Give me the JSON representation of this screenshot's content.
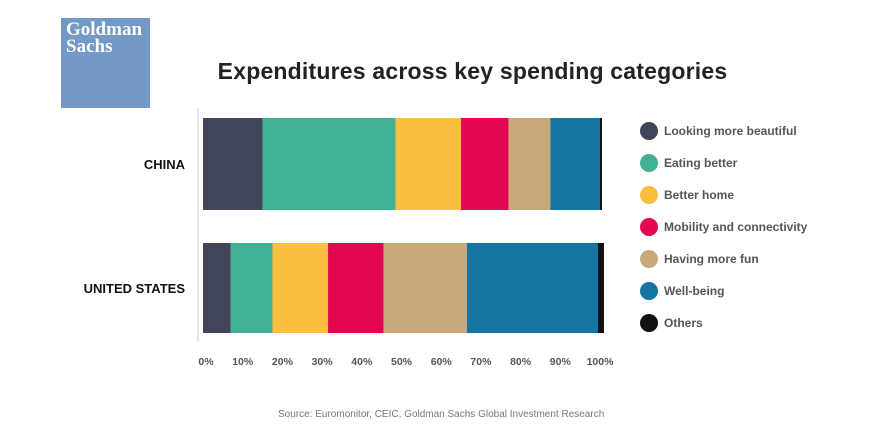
{
  "logo": {
    "line1": "Goldman",
    "line2": "Sachs",
    "color": "#7399c6"
  },
  "title": "Expenditures across key spending categories",
  "source": "Source: Euromonitor, CEIC, Goldman Sachs Global Investment Research",
  "chart_data": {
    "type": "bar",
    "orientation": "horizontal",
    "stacked": true,
    "title": "Expenditures across key spending categories",
    "categories": [
      "CHINA",
      "UNITED STATES"
    ],
    "series": [
      {
        "name": "Looking more beautiful",
        "color": "#414559",
        "values": [
          15,
          7
        ]
      },
      {
        "name": "Eating better",
        "color": "#42b093",
        "values": [
          33.5,
          10.5
        ]
      },
      {
        "name": "Better home",
        "color": "#fbbf3f",
        "values": [
          16.5,
          14
        ]
      },
      {
        "name": "Mobility and connectivity",
        "color": "#e3074f",
        "values": [
          12,
          14
        ]
      },
      {
        "name": "Having more fun",
        "color": "#c8a878",
        "values": [
          10.5,
          21
        ]
      },
      {
        "name": "Well-being",
        "color": "#1575a0",
        "values": [
          12.5,
          33
        ]
      },
      {
        "name": "Others",
        "color": "#111111",
        "values": [
          0.5,
          1.5
        ]
      }
    ],
    "xlim": [
      0,
      100
    ],
    "xticks": [
      "0%",
      "10%",
      "20%",
      "30%",
      "40%",
      "50%",
      "60%",
      "70%",
      "80%",
      "90%",
      "100%"
    ],
    "grid": false,
    "legend_position": "right"
  }
}
